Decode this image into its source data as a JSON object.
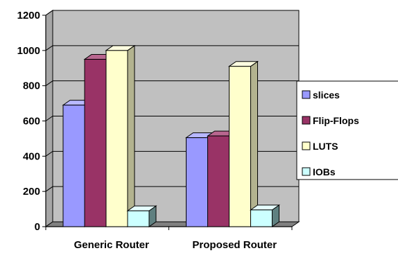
{
  "chart_data": {
    "type": "bar",
    "title": "",
    "xlabel": "",
    "ylabel": "",
    "categories": [
      "Generic Router",
      "Proposed Router"
    ],
    "series": [
      {
        "name": "slices",
        "values": [
          690,
          505
        ],
        "color": "#9999ff",
        "side": "#6b6bb3",
        "top": "#b8b8ff"
      },
      {
        "name": "Flip-Flops",
        "values": [
          950,
          515
        ],
        "color": "#993366",
        "side": "#6b2447",
        "top": "#b8668f"
      },
      {
        "name": "LUTS",
        "values": [
          1000,
          910
        ],
        "color": "#ffffcc",
        "side": "#b3b38f",
        "top": "#ffffe0"
      },
      {
        "name": "IOBs",
        "values": [
          90,
          95
        ],
        "color": "#ccffff",
        "side": "#5f8080",
        "top": "#e6ffff"
      }
    ],
    "ylim": [
      0,
      1200
    ],
    "yticks": [
      "0",
      "200",
      "400",
      "600",
      "800",
      "1000",
      "1200"
    ],
    "grid": true,
    "legend": "right",
    "wall_color": "#c0c0c0",
    "floor_color": "#808080"
  }
}
